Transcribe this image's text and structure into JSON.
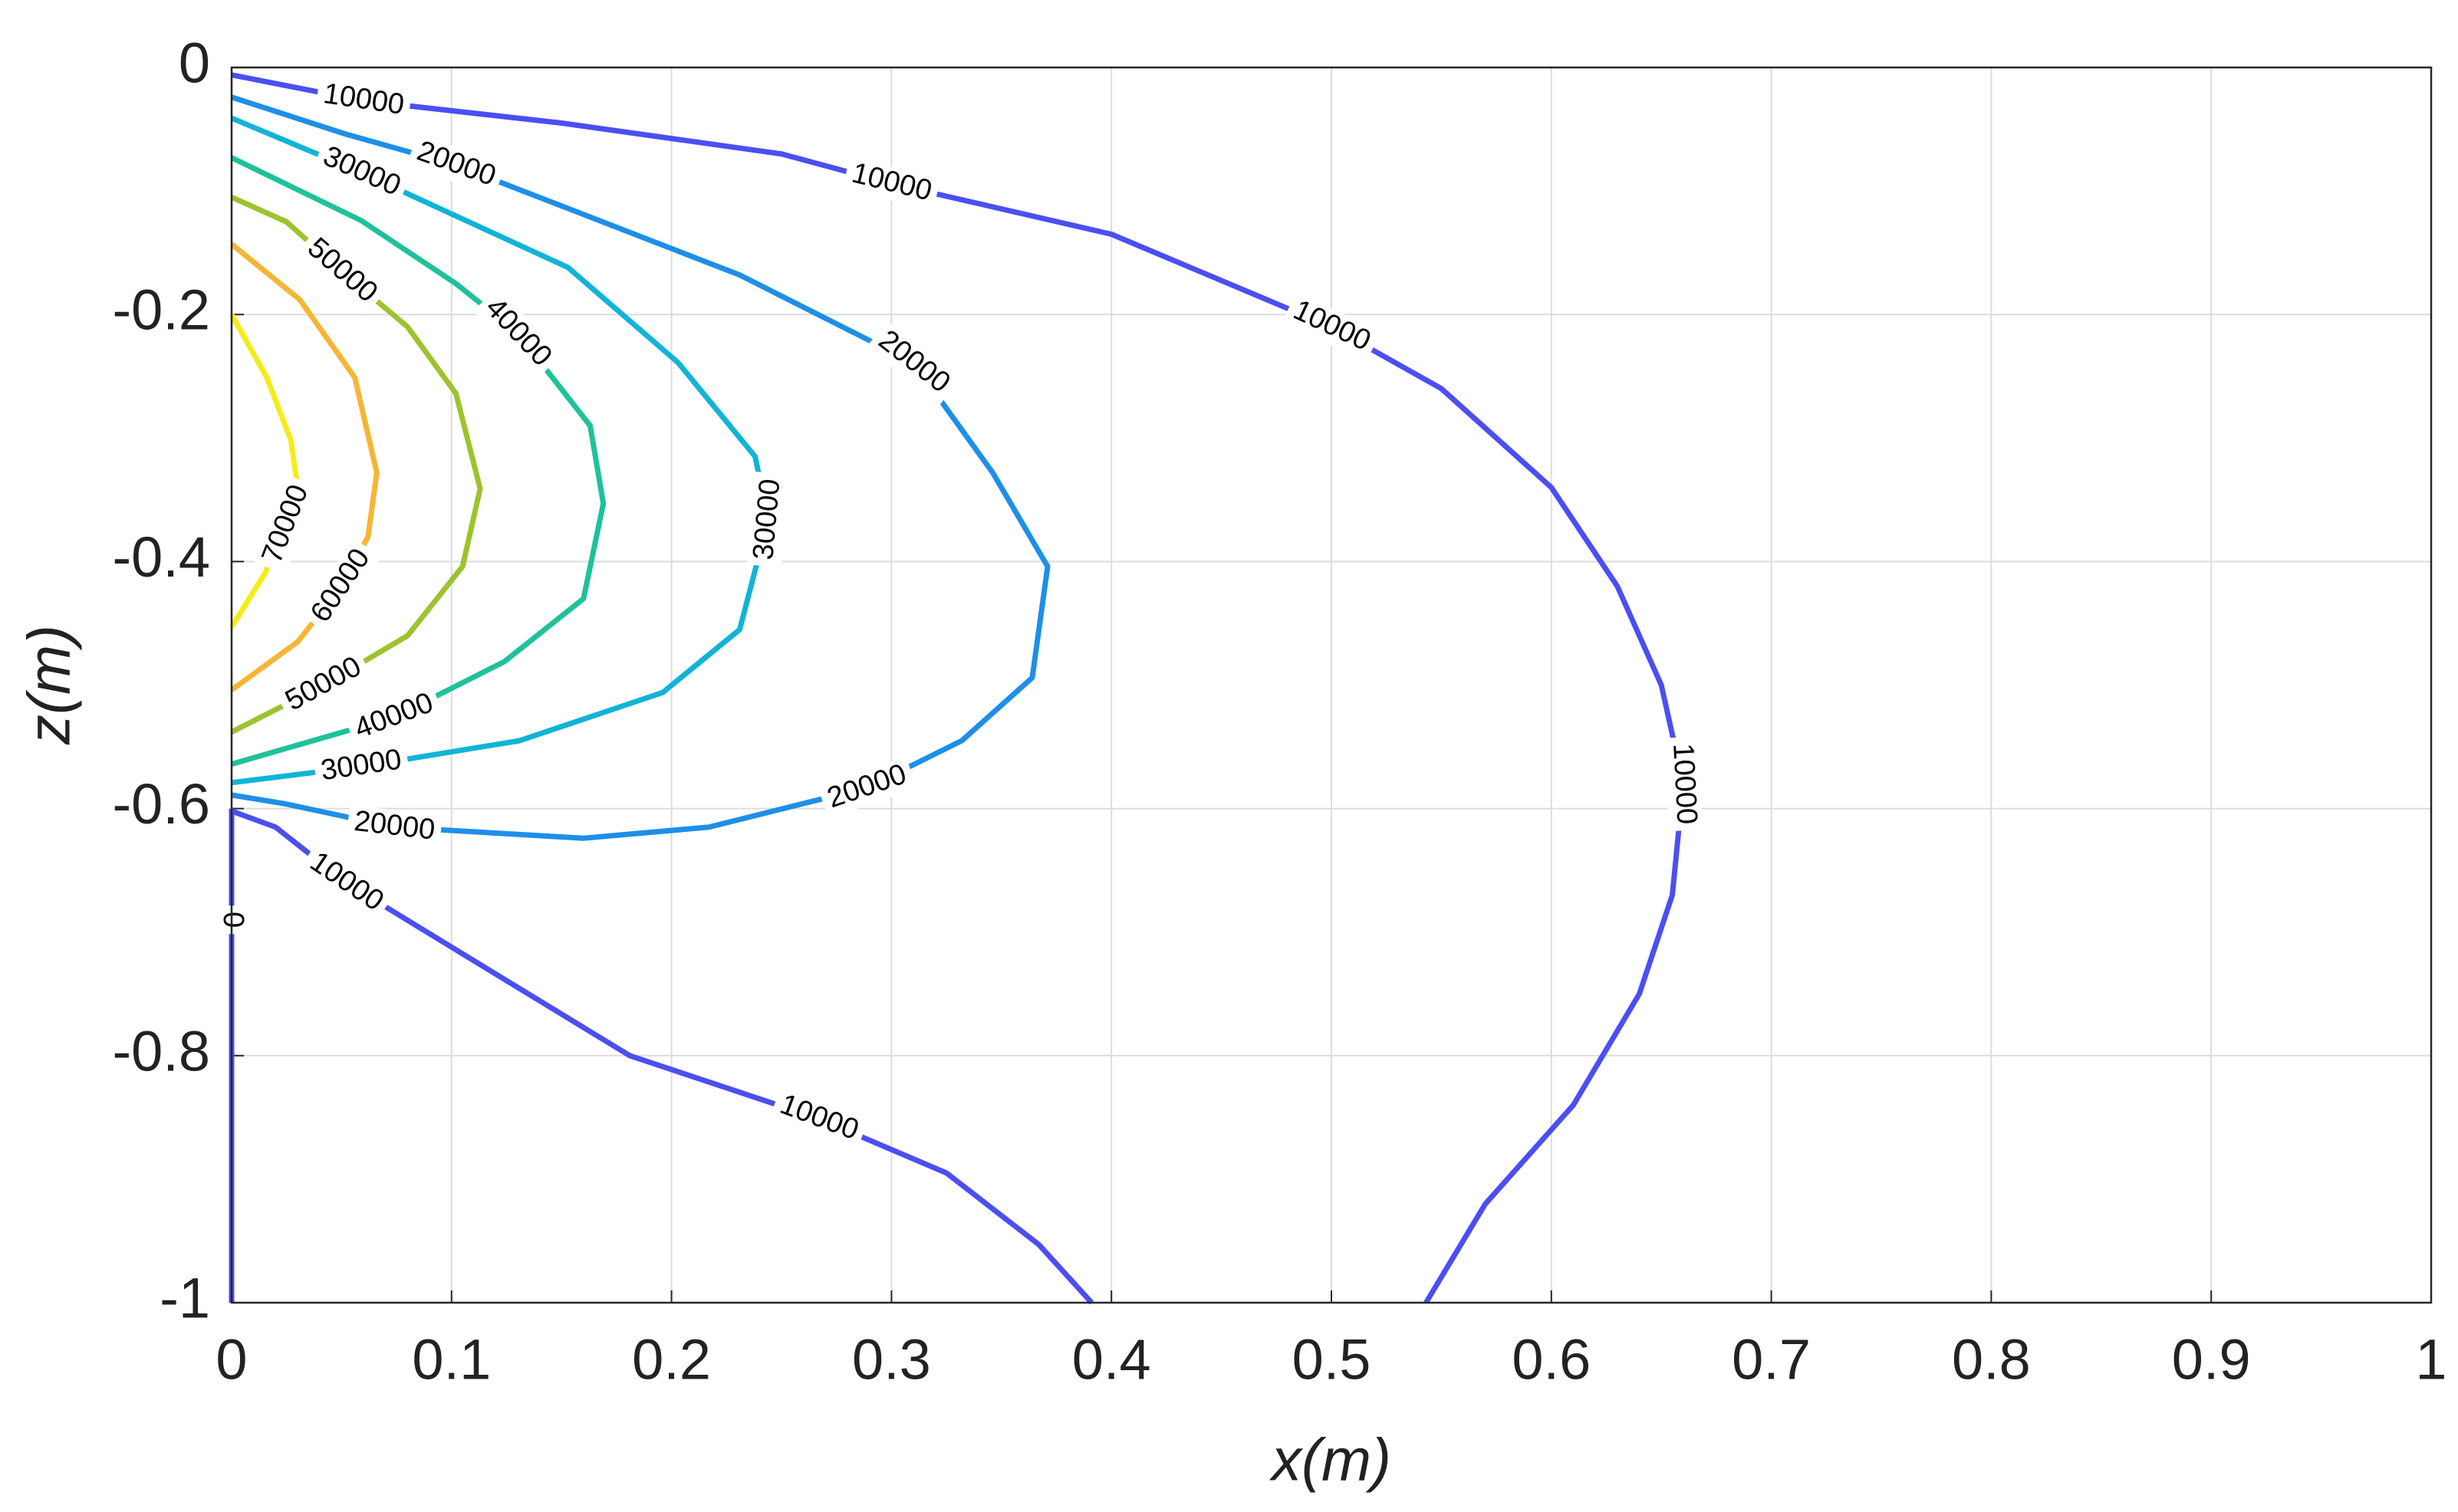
{
  "chart_data": {
    "type": "contour",
    "xlabel": "x(m)",
    "ylabel": "z(m)",
    "xlim": [
      0,
      1
    ],
    "ylim": [
      -1,
      0
    ],
    "xticks": [
      0,
      0.1,
      0.2,
      0.3,
      0.4,
      0.5,
      0.6,
      0.7,
      0.8,
      0.9,
      1
    ],
    "yticks": [
      -1,
      -0.8,
      -0.6,
      -0.4,
      -0.2,
      0
    ],
    "grid": true,
    "contours": [
      {
        "level": 10000,
        "color": "#4b4ff2",
        "x": [
          0,
          0.06,
          0.15,
          0.25,
          0.3,
          0.4,
          0.5,
          0.55,
          0.6,
          0.63,
          0.65,
          0.66,
          0.655,
          0.64,
          0.61,
          0.57,
          0.543
        ],
        "y": [
          -0.006,
          -0.027,
          -0.045,
          -0.07,
          -0.094,
          -0.135,
          -0.21,
          -0.26,
          -0.34,
          -0.42,
          -0.5,
          -0.58,
          -0.67,
          -0.75,
          -0.84,
          -0.92,
          -1
        ]
      },
      {
        "level": 10000,
        "color": "#4b4ff2",
        "x": [
          0,
          0.02,
          0.052,
          0.11,
          0.181,
          0.267,
          0.325,
          0.367,
          0.391
        ],
        "y": [
          -0.602,
          -0.615,
          -0.66,
          -0.723,
          -0.8,
          -0.851,
          -0.895,
          -0.953,
          -1
        ]
      },
      {
        "level": 20000,
        "color": "#1e8fe8",
        "x": [
          0,
          0.052,
          0.102,
          0.231,
          0.31,
          0.346,
          0.371,
          0.364,
          0.332,
          0.289,
          0.217,
          0.16,
          0.074,
          0.024,
          0
        ],
        "y": [
          -0.024,
          -0.054,
          -0.079,
          -0.168,
          -0.239,
          -0.328,
          -0.404,
          -0.494,
          -0.545,
          -0.583,
          -0.615,
          -0.624,
          -0.615,
          -0.596,
          -0.589
        ]
      },
      {
        "level": 30000,
        "color": "#11b4d6",
        "x": [
          0,
          0.059,
          0.153,
          0.203,
          0.238,
          0.244,
          0.231,
          0.196,
          0.131,
          0.059,
          0
        ],
        "y": [
          -0.041,
          -0.085,
          -0.162,
          -0.239,
          -0.315,
          -0.366,
          -0.455,
          -0.506,
          -0.545,
          -0.566,
          -0.579
        ]
      },
      {
        "level": 40000,
        "color": "#1ec29a",
        "x": [
          0,
          0.059,
          0.102,
          0.13,
          0.163,
          0.169,
          0.16,
          0.124,
          0.074,
          0
        ],
        "y": [
          -0.073,
          -0.124,
          -0.175,
          -0.215,
          -0.29,
          -0.353,
          -0.43,
          -0.481,
          -0.526,
          -0.564
        ]
      },
      {
        "level": 50000,
        "color": "#9dc32e",
        "x": [
          0,
          0.025,
          0.05,
          0.08,
          0.102,
          0.113,
          0.105,
          0.08,
          0.042,
          0
        ],
        "y": [
          -0.105,
          -0.125,
          -0.165,
          -0.21,
          -0.264,
          -0.341,
          -0.404,
          -0.46,
          -0.5,
          -0.538
        ]
      },
      {
        "level": 60000,
        "color": "#f7b535",
        "x": [
          0,
          0.031,
          0.056,
          0.066,
          0.062,
          0.05,
          0.03,
          0
        ],
        "y": [
          -0.143,
          -0.188,
          -0.251,
          -0.328,
          -0.38,
          -0.42,
          -0.465,
          -0.504
        ]
      },
      {
        "level": 70000,
        "color": "#f5ec1a",
        "x": [
          0,
          0.016,
          0.027,
          0.03,
          0.025,
          0.015,
          0
        ],
        "y": [
          -0.2,
          -0.251,
          -0.302,
          -0.34,
          -0.37,
          -0.41,
          -0.453
        ]
      },
      {
        "level": 0,
        "color": "#4b4ff2",
        "x": [
          0,
          0,
          0
        ],
        "y": [
          -0.6,
          -0.69,
          -1
        ]
      }
    ]
  }
}
